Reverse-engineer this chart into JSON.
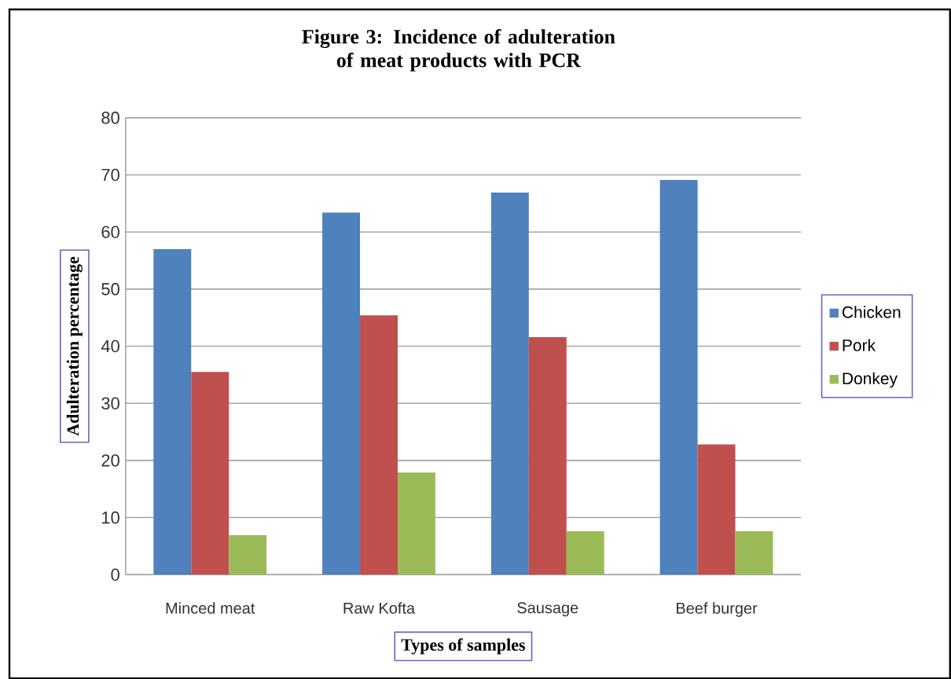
{
  "chart_data": {
    "type": "bar",
    "title": "Figure 3: Incidence of adulteration of meat products with PCR",
    "xlabel": "Types of samples",
    "ylabel": "Adulteration percentage",
    "categories": [
      "Minced meat",
      "Raw Kofta",
      "Sausage",
      "Beef burger"
    ],
    "series": [
      {
        "name": "Chicken",
        "color": "#4f81bd",
        "values": [
          57.0,
          63.4,
          66.9,
          69.1
        ]
      },
      {
        "name": "Pork",
        "color": "#c0504d",
        "values": [
          35.5,
          45.4,
          41.6,
          22.8
        ]
      },
      {
        "name": "Donkey",
        "color": "#9bbb59",
        "values": [
          6.9,
          17.9,
          7.6,
          7.6
        ]
      }
    ],
    "ylim": [
      0,
      80
    ],
    "yticks": [
      0,
      10,
      20,
      30,
      40,
      50,
      60,
      70,
      80
    ],
    "grid": "y",
    "legend": "right"
  }
}
